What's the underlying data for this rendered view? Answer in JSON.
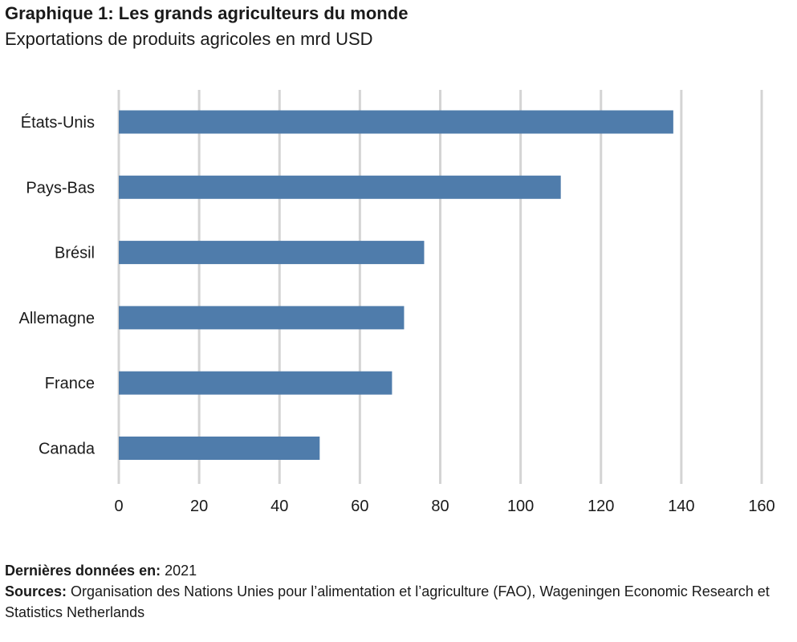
{
  "header": {
    "title": "Graphique 1: Les grands agriculteurs du monde",
    "subtitle": "Exportations de produits agricoles en mrd USD"
  },
  "chart_data": {
    "type": "bar",
    "orientation": "horizontal",
    "categories": [
      "États-Unis",
      "Pays-Bas",
      "Brésil",
      "Allemagne",
      "France",
      "Canada"
    ],
    "values": [
      138,
      110,
      76,
      71,
      68,
      50
    ],
    "xlim": [
      0,
      160
    ],
    "xticks": [
      0,
      20,
      40,
      60,
      80,
      100,
      120,
      140,
      160
    ],
    "grid": true,
    "bar_color": "#4f7cab",
    "grid_color": "#d4d4d4"
  },
  "footer": {
    "date_label": "Dernières données en:",
    "date_value": "2021",
    "sources_label": "Sources:",
    "sources_text": "Organisation des Nations Unies pour l’alimentation et l’agriculture (FAO), Wageningen Economic Research et Statistics Netherlands"
  }
}
